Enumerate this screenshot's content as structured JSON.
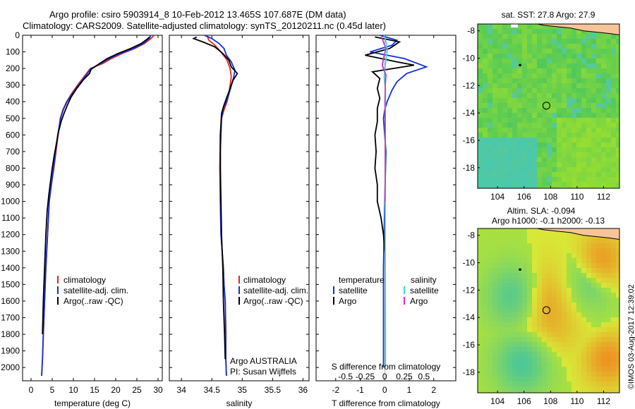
{
  "header": {
    "line1": "Argo profile: csiro 5903914_8 10-Feb-2012 13.465S 107.687E (DM data)",
    "line2": "Climatology: CARS2009. Satellite-adjusted climatology: synTS_20120211.nc (0.45d later)"
  },
  "credit": "©IMOS 03-Aug-2017 12:39:02",
  "colors": {
    "red": "#e8261c",
    "blue": "#1030d8",
    "black": "#000000",
    "cyan": "#28e0f0",
    "magenta": "#e020e0",
    "land": "#f7c49a"
  },
  "chart_data": [
    {
      "type": "line",
      "name": "temperature-profile",
      "xlabel": "temperature (deg C)",
      "xlim": [
        -2,
        31
      ],
      "ylim": [
        2080,
        0
      ],
      "xticks": [
        0,
        5,
        10,
        15,
        20,
        25,
        30
      ],
      "yticks": [
        0,
        100,
        200,
        300,
        400,
        500,
        600,
        700,
        800,
        900,
        1000,
        1100,
        1200,
        1300,
        1400,
        1500,
        1600,
        1700,
        1800,
        1900,
        2000
      ],
      "legend": [
        "climatology",
        "satellite-adj. clim.",
        "Argo(..raw -QC)"
      ],
      "series": [
        {
          "name": "climatology",
          "color": "red",
          "x": [
            29.1,
            28.3,
            26.8,
            24.5,
            21.5,
            19.0,
            17.0,
            14.0,
            12.5,
            11.0,
            9.6,
            8.4,
            7.5,
            6.9,
            6.4,
            5.9,
            5.4,
            4.8,
            4.3,
            3.9,
            3.5,
            3.2,
            2.9,
            2.7,
            2.5
          ],
          "y": [
            0,
            20,
            50,
            80,
            110,
            140,
            170,
            200,
            250,
            300,
            350,
            400,
            450,
            500,
            600,
            700,
            800,
            900,
            1000,
            1200,
            1400,
            1600,
            1800,
            1950,
            2050
          ]
        },
        {
          "name": "satellite-adj. clim.",
          "color": "blue",
          "x": [
            28.3,
            27.9,
            26.5,
            24.2,
            21.0,
            18.5,
            16.5,
            14.2,
            12.7,
            11.2,
            9.8,
            8.5,
            7.6,
            7.0,
            6.3,
            5.8,
            5.3,
            4.8,
            4.3,
            3.9,
            3.5,
            3.2,
            2.9,
            2.7,
            2.5
          ],
          "y": [
            0,
            20,
            50,
            80,
            110,
            140,
            170,
            200,
            250,
            300,
            350,
            400,
            450,
            500,
            600,
            700,
            800,
            900,
            1000,
            1200,
            1400,
            1600,
            1800,
            1950,
            2050
          ]
        },
        {
          "name": "Argo(..raw -QC)",
          "color": "black",
          "x": [
            28.0,
            27.6,
            26.0,
            23.5,
            20.5,
            18.0,
            16.2,
            14.2,
            13.8,
            12.3,
            10.8,
            9.5,
            8.6,
            7.8,
            7.1,
            6.5,
            6.0,
            5.5,
            5.0,
            4.6,
            4.2,
            3.8,
            3.5,
            3.2,
            2.9,
            2.7
          ],
          "y": [
            10,
            20,
            50,
            80,
            110,
            140,
            170,
            205,
            230,
            270,
            320,
            370,
            420,
            470,
            520,
            580,
            650,
            720,
            800,
            880,
            960,
            1060,
            1200,
            1400,
            1600,
            1800
          ]
        }
      ]
    },
    {
      "type": "line",
      "name": "salinity-profile",
      "xlabel": "salinity",
      "xlim": [
        33.8,
        36.1
      ],
      "ylim": [
        2080,
        0
      ],
      "xticks": [
        34,
        34.5,
        35,
        35.5,
        36
      ],
      "legend": [
        "climatology",
        "satellite-adj. clim.",
        "Argo(..raw -QC)"
      ],
      "annotation": [
        "Argo AUSTRALIA",
        "PI: Susan Wijffels"
      ],
      "series": [
        {
          "name": "climatology",
          "color": "red",
          "x": [
            34.42,
            34.45,
            34.55,
            34.65,
            34.75,
            34.8,
            34.82,
            34.8,
            34.78,
            34.75,
            34.7,
            34.66,
            34.64,
            34.63,
            34.64,
            34.65,
            34.67,
            34.69,
            34.7,
            34.72,
            34.73,
            34.73,
            34.74
          ],
          "y": [
            0,
            30,
            60,
            100,
            150,
            200,
            250,
            300,
            350,
            400,
            450,
            500,
            600,
            800,
            1000,
            1200,
            1300,
            1400,
            1500,
            1600,
            1800,
            1950,
            2050
          ]
        },
        {
          "name": "satellite-adj. clim.",
          "color": "blue",
          "x": [
            34.38,
            34.5,
            34.62,
            34.7,
            34.74,
            34.82,
            34.88,
            34.86,
            34.83,
            34.8,
            34.76,
            34.69,
            34.66,
            34.64,
            34.64,
            34.65,
            34.67,
            34.69,
            34.7,
            34.72,
            34.73,
            34.73,
            34.74
          ],
          "y": [
            0,
            20,
            50,
            80,
            120,
            160,
            210,
            250,
            290,
            330,
            380,
            440,
            500,
            700,
            1000,
            1200,
            1300,
            1400,
            1500,
            1600,
            1800,
            1950,
            2050
          ]
        },
        {
          "name": "Argo(..raw -QC)",
          "color": "black",
          "x": [
            34.25,
            34.2,
            34.35,
            34.55,
            34.68,
            34.78,
            34.82,
            34.92,
            34.85,
            34.8,
            34.75,
            34.7,
            34.66,
            34.64,
            34.64,
            34.65,
            34.66,
            34.68,
            34.69,
            34.71,
            34.72
          ],
          "y": [
            10,
            20,
            40,
            70,
            110,
            150,
            190,
            230,
            270,
            320,
            370,
            420,
            470,
            600,
            800,
            1000,
            1200,
            1400,
            1600,
            1800,
            1950
          ]
        }
      ]
    },
    {
      "type": "line",
      "name": "difference-profile",
      "xlabel": "T difference from climatology",
      "xlabel_top": "S difference from climatology",
      "xlim": [
        -2.8,
        2.9
      ],
      "ylim": [
        2080,
        0
      ],
      "xticks": [
        -2,
        -1,
        0,
        1,
        2
      ],
      "xticks_top": [
        -0.5,
        -0.25,
        0,
        0.25,
        0.5
      ],
      "legend_left_title": "temperature",
      "legend_right_title": "salinity",
      "legend_left": [
        "satellite",
        "Argo"
      ],
      "legend_right": [
        "satellite",
        "Argo"
      ],
      "series": [
        {
          "name": "temperature satellite",
          "color": "blue",
          "x": [
            -0.2,
            0.5,
            0.3,
            -0.6,
            0.8,
            1.7,
            0.9,
            0.5,
            0.3,
            0.1,
            0.0,
            -0.05,
            0.05,
            0.0,
            -0.05,
            -0.05,
            -0.05
          ],
          "y": [
            0,
            30,
            60,
            100,
            140,
            190,
            230,
            280,
            330,
            400,
            450,
            500,
            700,
            1000,
            1400,
            1800,
            2000
          ]
        },
        {
          "name": "temperature Argo",
          "color": "black",
          "x": [
            -0.4,
            0.6,
            0.2,
            -0.8,
            0.5,
            1.2,
            -0.5,
            -0.2,
            -0.3,
            -0.2,
            -0.3,
            -0.3,
            -0.4,
            -0.35,
            -0.4,
            -0.3,
            -0.3,
            -0.15,
            -0.05,
            0.0
          ],
          "y": [
            10,
            40,
            80,
            120,
            160,
            180,
            220,
            260,
            320,
            380,
            440,
            520,
            600,
            700,
            800,
            900,
            1000,
            1100,
            1200,
            1300
          ]
        },
        {
          "name": "salinity satellite",
          "color": "cyan",
          "x": [
            -0.03,
            0.05,
            0.1,
            0.05,
            0.0,
            -0.02,
            0.03,
            0.03,
            0.02,
            0.02,
            0.02,
            0.03,
            0.03
          ],
          "y": [
            0,
            40,
            90,
            150,
            200,
            260,
            320,
            400,
            600,
            1000,
            1400,
            1800,
            2000
          ]
        },
        {
          "name": "salinity Argo",
          "color": "magenta",
          "x": [
            -0.13,
            -0.05,
            0.05,
            -0.02,
            -0.1,
            0.05,
            0.02,
            0.01,
            0.02,
            0.02,
            0.01
          ],
          "y": [
            10,
            40,
            80,
            120,
            180,
            240,
            300,
            400,
            600,
            800,
            1000
          ]
        }
      ]
    },
    {
      "type": "heatmap",
      "name": "sst-map",
      "title": "sat. SST: 27.8  Argo: 27.9",
      "xlim": [
        102.5,
        113.2
      ],
      "ylim": [
        -19.5,
        -7.5
      ],
      "xticks": [
        104,
        106,
        108,
        110,
        112
      ],
      "yticks": [
        -8,
        -10,
        -12,
        -14,
        -16,
        -18
      ],
      "argo_position": [
        107.687,
        -13.465
      ],
      "island_position": [
        105.7,
        -10.5
      ]
    },
    {
      "type": "heatmap",
      "name": "sla-map",
      "title_line1": "Altim. SLA: -0.094",
      "title_line2": "Argo h1000: -0.1  h2000: -0.13",
      "xlim": [
        102.5,
        113.2
      ],
      "ylim": [
        -19.5,
        -7.5
      ],
      "xticks": [
        104,
        106,
        108,
        110,
        112
      ],
      "yticks": [
        -8,
        -10,
        -12,
        -14,
        -16,
        -18
      ],
      "argo_position": [
        107.687,
        -13.465
      ],
      "island_position": [
        105.7,
        -10.5
      ]
    }
  ]
}
